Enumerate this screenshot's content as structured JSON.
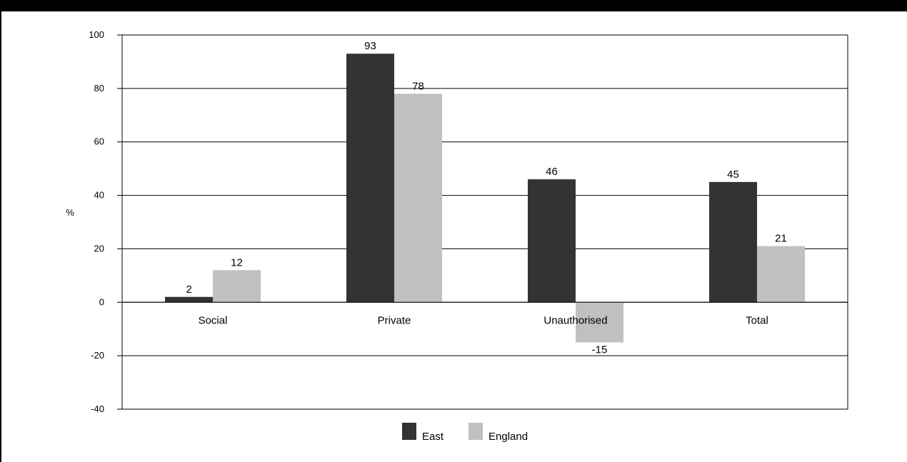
{
  "chart_data": {
    "type": "bar",
    "categories": [
      "Social",
      "Private",
      "Unauthorised",
      "Total"
    ],
    "series": [
      {
        "name": "East",
        "values": [
          2,
          93,
          46,
          45
        ],
        "color": "#333333"
      },
      {
        "name": "England",
        "values": [
          12,
          78,
          -15,
          21
        ],
        "color": "#c0c0c0"
      }
    ],
    "ylabel": "%",
    "ylim": [
      -40,
      100
    ],
    "yticks": [
      -40,
      -20,
      0,
      20,
      40,
      60,
      80,
      100
    ],
    "ytick_labels": [
      "-40",
      "-20",
      "0",
      "20",
      "40",
      "60",
      "80",
      "100"
    ],
    "data_labels": [
      [
        "2",
        "93",
        "46",
        "45"
      ],
      [
        "12",
        "78",
        "-15",
        "21"
      ]
    ],
    "grid": true,
    "legend": "bottom-center"
  }
}
